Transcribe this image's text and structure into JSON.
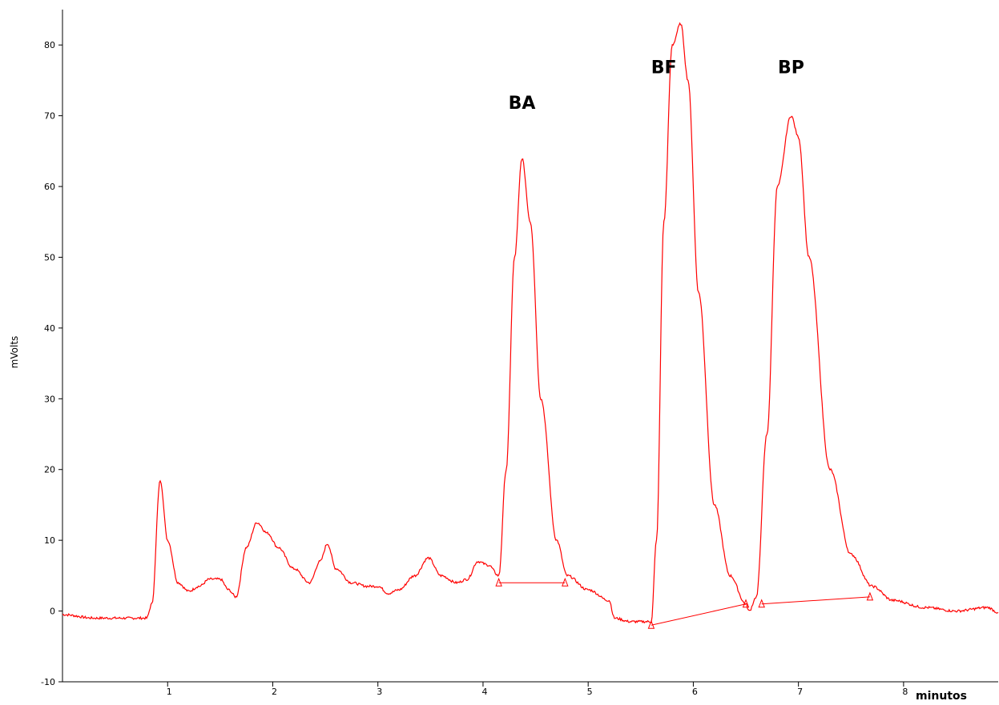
{
  "chart_data": {
    "type": "line",
    "xlabel": "minutos",
    "ylabel": "mVolts",
    "xlim": [
      0,
      8.9
    ],
    "ylim": [
      -10,
      85
    ],
    "x_ticks": [
      "1",
      "2",
      "3",
      "4",
      "5",
      "6",
      "7",
      "8"
    ],
    "y_ticks": [
      "-10",
      "0",
      "10",
      "20",
      "30",
      "40",
      "50",
      "60",
      "70",
      "80"
    ],
    "grid": false,
    "line_color": "#ff0000",
    "series": [
      {
        "x": [
          0.0,
          0.3,
          0.5,
          0.8,
          0.85,
          0.93,
          1.0,
          1.1,
          1.2,
          1.3,
          1.4,
          1.5,
          1.58,
          1.65,
          1.75,
          1.85,
          1.95,
          2.05,
          2.2,
          2.35,
          2.45,
          2.52,
          2.6,
          2.75,
          2.9,
          3.0,
          3.1,
          3.2,
          3.35,
          3.48,
          3.6,
          3.75,
          3.85,
          3.95,
          4.05,
          4.15,
          4.22,
          4.3,
          4.37,
          4.45,
          4.55,
          4.7,
          4.8,
          5.0,
          5.2,
          5.25,
          5.4,
          5.6,
          5.65,
          5.72,
          5.8,
          5.88,
          5.95,
          6.05,
          6.2,
          6.35,
          6.5,
          6.53,
          6.6,
          6.7,
          6.8,
          6.93,
          7.0,
          7.1,
          7.3,
          7.5,
          7.7,
          7.9,
          8.2,
          8.5,
          8.8,
          8.9
        ],
        "y": [
          -0.5,
          -1.0,
          -1.0,
          -1.0,
          1.0,
          18.5,
          10.0,
          4.0,
          2.8,
          3.5,
          4.5,
          4.5,
          3.0,
          2.0,
          9.0,
          12.5,
          11.0,
          9.0,
          6.0,
          4.0,
          7.0,
          9.5,
          6.0,
          4.0,
          3.5,
          3.5,
          2.5,
          3.0,
          5.0,
          7.5,
          5.0,
          4.0,
          4.5,
          7.0,
          6.5,
          5.0,
          20.0,
          50.0,
          64.0,
          55.0,
          30.0,
          10.0,
          5.0,
          3.0,
          1.5,
          -1.0,
          -1.5,
          -1.5,
          10.0,
          55.0,
          80.0,
          83.0,
          75.0,
          45.0,
          15.0,
          5.0,
          1.0,
          0.0,
          2.0,
          25.0,
          60.0,
          70.0,
          67.0,
          50.0,
          20.0,
          8.0,
          3.5,
          1.5,
          0.5,
          0.0,
          0.5,
          -0.2
        ]
      }
    ],
    "baselines": [
      {
        "x": [
          4.15,
          4.78
        ],
        "y": [
          4.0,
          4.0
        ]
      },
      {
        "x": [
          5.6,
          6.5
        ],
        "y": [
          -2.0,
          1.0
        ]
      },
      {
        "x": [
          6.65,
          7.68
        ],
        "y": [
          1.0,
          2.0
        ]
      }
    ],
    "annotations": [
      {
        "text": "BA",
        "x": 4.37,
        "y": 71
      },
      {
        "text": "BF",
        "x": 5.72,
        "y": 76
      },
      {
        "text": "BP",
        "x": 6.93,
        "y": 76
      }
    ]
  }
}
